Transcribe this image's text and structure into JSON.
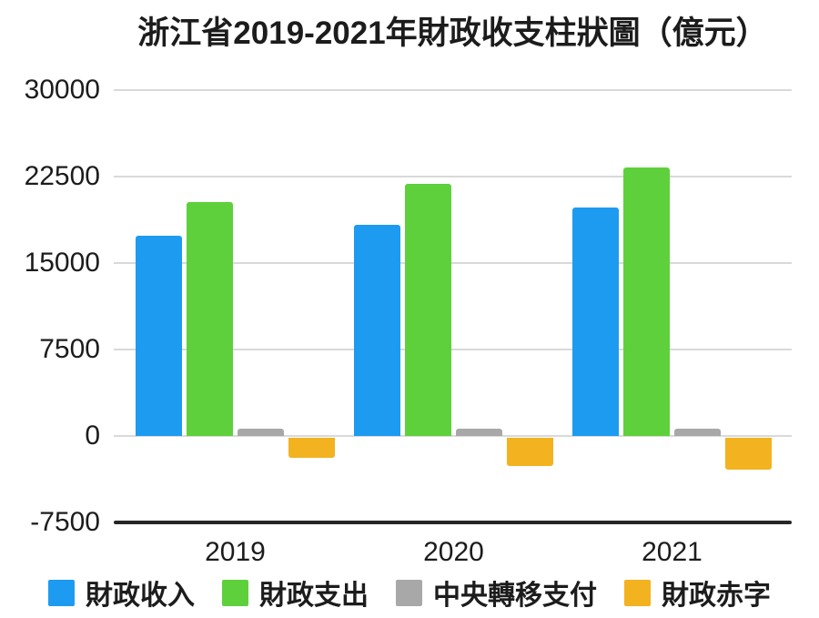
{
  "chart_data": {
    "type": "bar",
    "title": "浙江省2019-2021年財政收支柱狀圖（億元）",
    "categories": [
      "2019",
      "2020",
      "2021"
    ],
    "series": [
      {
        "key": "revenue",
        "name": "財政收入",
        "color": "#1d9bf0",
        "values": [
          17400,
          18300,
          19800
        ]
      },
      {
        "key": "expenditure",
        "name": "財政支出",
        "color": "#5ed03c",
        "values": [
          20300,
          21900,
          23300
        ]
      },
      {
        "key": "transfer",
        "name": "中央轉移支付",
        "color": "#a8a8a8",
        "values": [
          600,
          650,
          650
        ]
      },
      {
        "key": "deficit",
        "name": "財政赤字",
        "color": "#f3b21f",
        "values": [
          -1900,
          -2600,
          -2900
        ]
      }
    ],
    "y_ticks": [
      30000,
      22500,
      15000,
      7500,
      0,
      -7500
    ],
    "ylim": [
      -7500,
      30000
    ],
    "xlabel": "",
    "ylabel": "",
    "grid": true,
    "legend_position": "bottom"
  },
  "colors": {
    "grid": "#d9d9d9",
    "axis": "#262626",
    "text": "#1c1c1c",
    "background": "#ffffff"
  }
}
